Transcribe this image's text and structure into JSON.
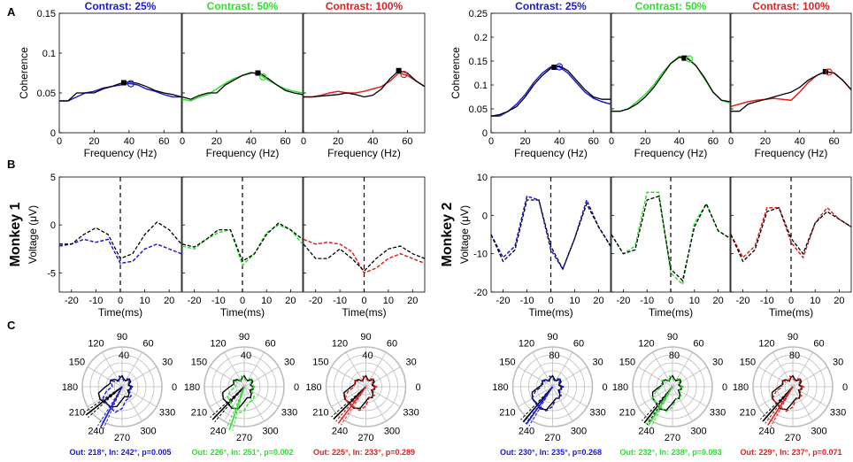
{
  "panel_letters": [
    "A",
    "B",
    "C"
  ],
  "conditions": [
    {
      "label": "Contrast: 25%",
      "color": "#1a1ad6"
    },
    {
      "label": "Contrast: 50%",
      "color": "#2de02d"
    },
    {
      "label": "Contrast: 100%",
      "color": "#e02020"
    }
  ],
  "monkeys": [
    {
      "label": "Monkey 1",
      "stats": [
        "Out: 218°, In: 242°, p=0.005",
        "Out: 226°, In: 251°, p=0.002",
        "Out: 225°, In: 233°, p=0.289"
      ]
    },
    {
      "label": "Monkey 2",
      "stats": [
        "Out: 230°, In: 235°, p=0.268",
        "Out: 232°, In: 238°, p=0.093",
        "Out: 229°, In: 237°, p=0.071"
      ]
    }
  ],
  "chart_data": [
    {
      "type": "line",
      "panel": "A",
      "monkey": "Monkey 1",
      "xlabel": "Frequency (Hz)",
      "ylabel": "Coherence",
      "xlim": [
        0,
        70
      ],
      "ylim": [
        0,
        0.15
      ],
      "xticks": [
        0,
        20,
        40,
        60
      ],
      "yticks": [
        0,
        0.05,
        0.1,
        0.15
      ],
      "x": [
        0,
        5,
        10,
        15,
        20,
        25,
        30,
        35,
        40,
        45,
        50,
        55,
        60,
        65,
        70
      ],
      "series": [
        {
          "name": "Out",
          "values": [
            [
              0.04,
              0.04,
              0.05,
              0.05,
              0.05,
              0.055,
              0.058,
              0.062,
              0.064,
              0.062,
              0.058,
              0.053,
              0.05,
              0.048,
              0.045
            ],
            [
              0.045,
              0.042,
              0.047,
              0.05,
              0.05,
              0.06,
              0.066,
              0.072,
              0.075,
              0.075,
              0.068,
              0.06,
              0.053,
              0.05,
              0.048
            ],
            [
              0.045,
              0.045,
              0.046,
              0.047,
              0.048,
              0.05,
              0.048,
              0.045,
              0.047,
              0.055,
              0.068,
              0.078,
              0.075,
              0.065,
              0.058
            ]
          ]
        },
        {
          "name": "In",
          "values": [
            [
              0.04,
              0.04,
              0.045,
              0.05,
              0.052,
              0.056,
              0.058,
              0.06,
              0.062,
              0.06,
              0.055,
              0.052,
              0.048,
              0.045,
              0.045
            ],
            [
              0.042,
              0.04,
              0.045,
              0.048,
              0.055,
              0.062,
              0.068,
              0.072,
              0.076,
              0.073,
              0.066,
              0.06,
              0.055,
              0.052,
              0.05
            ],
            [
              0.045,
              0.045,
              0.047,
              0.05,
              0.052,
              0.05,
              0.05,
              0.052,
              0.055,
              0.058,
              0.065,
              0.075,
              0.072,
              0.065,
              0.058
            ]
          ]
        }
      ],
      "peak_markers": [
        [
          37,
          41
        ],
        [
          44,
          47
        ],
        [
          55,
          58
        ]
      ]
    },
    {
      "type": "line",
      "panel": "A",
      "monkey": "Monkey 2",
      "xlabel": "Frequency (Hz)",
      "ylabel": "Coherence",
      "xlim": [
        0,
        70
      ],
      "ylim": [
        0,
        0.25
      ],
      "xticks": [
        0,
        20,
        40,
        60
      ],
      "yticks": [
        0,
        0.05,
        0.1,
        0.15,
        0.2,
        0.25
      ],
      "x": [
        0,
        5,
        10,
        15,
        20,
        25,
        30,
        35,
        40,
        45,
        50,
        55,
        60,
        65,
        70
      ],
      "series": [
        {
          "name": "Out",
          "values": [
            [
              0.035,
              0.038,
              0.045,
              0.055,
              0.075,
              0.1,
              0.12,
              0.135,
              0.14,
              0.13,
              0.11,
              0.09,
              0.075,
              0.07,
              0.07
            ],
            [
              0.045,
              0.045,
              0.05,
              0.06,
              0.075,
              0.095,
              0.12,
              0.145,
              0.158,
              0.155,
              0.14,
              0.115,
              0.085,
              0.068,
              0.065
            ],
            [
              0.045,
              0.045,
              0.06,
              0.065,
              0.07,
              0.075,
              0.08,
              0.085,
              0.095,
              0.11,
              0.12,
              0.128,
              0.125,
              0.11,
              0.09
            ]
          ]
        },
        {
          "name": "In",
          "values": [
            [
              0.035,
              0.035,
              0.045,
              0.06,
              0.08,
              0.105,
              0.125,
              0.138,
              0.138,
              0.125,
              0.105,
              0.085,
              0.072,
              0.065,
              0.06
            ],
            [
              0.045,
              0.045,
              0.05,
              0.065,
              0.08,
              0.1,
              0.125,
              0.145,
              0.16,
              0.158,
              0.14,
              0.112,
              0.085,
              0.068,
              0.062
            ],
            [
              0.055,
              0.06,
              0.065,
              0.068,
              0.07,
              0.072,
              0.07,
              0.068,
              0.085,
              0.105,
              0.12,
              0.128,
              0.125,
              0.11,
              0.09
            ]
          ]
        }
      ],
      "peak_markers": [
        [
          37,
          40
        ],
        [
          43,
          46
        ],
        [
          55,
          57
        ]
      ]
    },
    {
      "type": "line",
      "panel": "B",
      "monkey": "Monkey 1",
      "xlabel": "Time(ms)",
      "ylabel": "Voltage (μV)",
      "xlim": [
        -25,
        25
      ],
      "ylim": [
        -7,
        5
      ],
      "xticks": [
        -20,
        -10,
        0,
        10,
        20
      ],
      "yticks": [
        -5,
        0,
        5
      ],
      "x": [
        -25,
        -20,
        -15,
        -10,
        -5,
        0,
        5,
        10,
        15,
        20,
        25
      ],
      "series": [
        {
          "name": "Out",
          "values": [
            [
              -2,
              -2,
              -1,
              -0.3,
              -1,
              -3.5,
              -3,
              -1,
              0.3,
              -0.5,
              -2
            ],
            [
              -2,
              -2.3,
              -1.5,
              -0.5,
              -0.5,
              -3.8,
              -3,
              -1,
              0.2,
              -0.5,
              -1.5
            ],
            [
              -2,
              -3.5,
              -3.5,
              -2.5,
              -3.5,
              -4.8,
              -3.5,
              -2.5,
              -2.2,
              -3,
              -3.5
            ]
          ]
        },
        {
          "name": "In",
          "values": [
            [
              -2.2,
              -2,
              -1.5,
              -1.8,
              -1.5,
              -4,
              -3.8,
              -2.5,
              -2,
              -2.5,
              -3
            ],
            [
              -2.2,
              -2.5,
              -1.5,
              -0.8,
              -0.5,
              -4.2,
              -3,
              -0.8,
              0,
              -0.5,
              -2
            ],
            [
              -1.5,
              -2,
              -1.8,
              -2,
              -2.8,
              -5,
              -4.5,
              -3.5,
              -3,
              -3.5,
              -4
            ]
          ]
        }
      ]
    },
    {
      "type": "line",
      "panel": "B",
      "monkey": "Monkey 2",
      "xlabel": "Time(ms)",
      "ylabel": "Voltage (μV)",
      "xlim": [
        -25,
        25
      ],
      "ylim": [
        -20,
        10
      ],
      "xticks": [
        -20,
        -10,
        0,
        10,
        20
      ],
      "yticks": [
        -20,
        -10,
        0,
        10
      ],
      "x": [
        -25,
        -20,
        -15,
        -10,
        -5,
        0,
        5,
        10,
        15,
        20,
        25
      ],
      "series": [
        {
          "name": "Out",
          "values": [
            [
              -5,
              -12,
              -9,
              4,
              4,
              -8,
              -14,
              -6,
              3,
              -3,
              -8
            ],
            [
              -5,
              -10,
              -9,
              4,
              5,
              -14,
              -17,
              -3,
              3,
              -4,
              -6
            ],
            [
              -5,
              -12,
              -9,
              1,
              2,
              -6,
              -10,
              -2,
              1,
              -1,
              -3
            ]
          ]
        },
        {
          "name": "In",
          "values": [
            [
              -5,
              -11,
              -8,
              5,
              4,
              -9,
              -14,
              -6,
              4,
              -3,
              -8
            ],
            [
              -5,
              -10,
              -8,
              6,
              6,
              -15,
              -18,
              -2,
              3,
              -4,
              -6
            ],
            [
              -5,
              -11,
              -8,
              2,
              2,
              -7,
              -11,
              -2,
              2,
              -1,
              -3
            ]
          ]
        }
      ]
    },
    {
      "type": "polar",
      "panel": "C",
      "monkey": "Monkey 1",
      "angle_labels": [
        "0",
        "30",
        "60",
        "90",
        "120",
        "150",
        "180",
        "210",
        "240",
        "270",
        "300",
        "330"
      ],
      "radial_label": "40",
      "rmax": 50,
      "mean_out_deg": [
        218,
        226,
        225
      ],
      "mean_in_deg": [
        242,
        251,
        233
      ]
    },
    {
      "type": "polar",
      "panel": "C",
      "monkey": "Monkey 2",
      "angle_labels": [
        "0",
        "30",
        "60",
        "90",
        "120",
        "150",
        "180",
        "210",
        "240",
        "270",
        "300",
        "330"
      ],
      "radial_label": "80",
      "rmax": 100,
      "mean_out_deg": [
        230,
        232,
        229
      ],
      "mean_in_deg": [
        235,
        238,
        237
      ]
    }
  ]
}
